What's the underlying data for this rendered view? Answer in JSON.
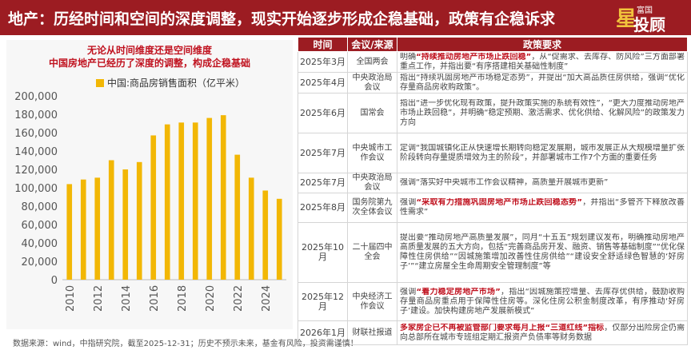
{
  "header": {
    "title": "地产：历经时间和空间的深度调整，现实开始逐步形成企稳基础，政策有企稳诉求",
    "logo_top": "富国",
    "logo_main": "投顾",
    "logo_mark": "星"
  },
  "colors": {
    "header_bg": "#9c1c22",
    "bar": "#f2b705",
    "highlight": "#c0121f"
  },
  "chart_data": {
    "type": "bar",
    "title": "无论从时间维度还是空间维度",
    "subtitle": "中国房地产已经历了深度的调整，构成企稳基础",
    "series": [
      {
        "name": "中国:商品房销售面积（亿平米）",
        "color": "#f2b705"
      }
    ],
    "x": [
      2010,
      2011,
      2012,
      2013,
      2014,
      2015,
      2016,
      2017,
      2018,
      2019,
      2020,
      2021,
      2022,
      2023,
      2024,
      2025
    ],
    "values": [
      104000,
      109000,
      111000,
      130000,
      120000,
      128000,
      157000,
      169000,
      171000,
      171000,
      176000,
      179000,
      136000,
      111000,
      97000,
      88000
    ],
    "xticks": [
      "2010",
      "2012",
      "2014",
      "2016",
      "2018",
      "2020",
      "2022",
      "2024"
    ],
    "yticks": [
      "0",
      "20,000",
      "40,000",
      "60,000",
      "80,000",
      "100,000",
      "120,000",
      "140,000",
      "160,000",
      "180,000",
      "200,000"
    ],
    "ylim": [
      0,
      200000
    ],
    "grid": false,
    "legend_position": "top"
  },
  "table": {
    "headers": [
      "时间",
      "会议/来源",
      "政策要求"
    ],
    "rows": [
      {
        "time": "2025年3月",
        "org": "全国两会",
        "parts": [
          {
            "t": "明确"
          },
          {
            "t": "“持续推动房地产市场止跌回稳”",
            "hl": true
          },
          {
            "t": "，从“促需求、去库存、防风险”三方面部署重点工作，并指出要“有序搭建相关基础性制度”"
          }
        ]
      },
      {
        "time": "2025年4月",
        "org": "中央政治局会议",
        "parts": [
          {
            "t": "指出“持续巩固房地产市场稳定态势”，并提出“加大高品质住房供给，强调“优化存量商品房收购政策”。"
          }
        ]
      },
      {
        "time": "2025年6月",
        "org": "国常会",
        "parts": [
          {
            "t": "指出“进一步优化现有政策，提升政策实施的系统有效性”，“更大力度推动房地产市场止跌回稳”，并明确“稳定预期、激活需求、优化供给、化解风险”的政策发力方向"
          }
        ]
      },
      {
        "time": "2025年7月",
        "org": "中央城市工作会议",
        "parts": [
          {
            "t": "定调“我国城镇化正从快速增长期转向稳定发展期，城市发展正从大规模增量扩张阶段转向存量提质增效为主的阶段”，并部署城市工作7个方面的重要任务"
          }
        ]
      },
      {
        "time": "2025年7月",
        "org": "中央政治局会议",
        "parts": [
          {
            "t": "强调“落实好中央城市工作会议精神，高质量开展城市更新”"
          }
        ]
      },
      {
        "time": "2025年8月",
        "org": "国务院第九次全体会议",
        "parts": [
          {
            "t": "强调"
          },
          {
            "t": "“采取有力措施巩固房地产市场止跌回稳态势”",
            "hl": true
          },
          {
            "t": "，并指出“多管齐下释放改善性需求”"
          }
        ]
      },
      {
        "time": "2025年10月",
        "org": "二十届四中全会",
        "parts": [
          {
            "t": "提出要“推动房地产高质量发展”，同月“十五五”规划建议发布，明确推动房地产高质量发展的五大方向，包括“完善商品房开发、融资、销售等基础制度”“优化保障性住房供给”“因城施策增加改善性住房供给”“建设安全舒适绿色智慧的‘好房子’”“建立房屋全生命周期安全管理制度”等"
          }
        ]
      },
      {
        "time": "2025年12月",
        "org": "中央经济工作会议",
        "parts": [
          {
            "t": "强调"
          },
          {
            "t": "“着力稳定房地产市场”",
            "hl": true
          },
          {
            "t": "，指出“因城施策控增量、去库存优供给，鼓励收购存量商品房重点用于保障性住房等。深化住房公积金制度改革，有序推动‘好房子’建设。加快构建房地产发展新模式”"
          }
        ]
      },
      {
        "time": "2026年1月",
        "org": "财联社报道",
        "parts": [
          {
            "t": "多家房企已不再被监管部门要求每月上报“三道红线”指标",
            "hl": true
          },
          {
            "t": "，仅部分出险房企仍需向总部所在城市专班组定期汇报资产负债率等财务数据"
          }
        ]
      }
    ]
  },
  "footer": {
    "text": "数据来源：wind，中指研究院，截至2025-12-31；历史不预示未来，基金有风险，投资需谨慎！"
  }
}
